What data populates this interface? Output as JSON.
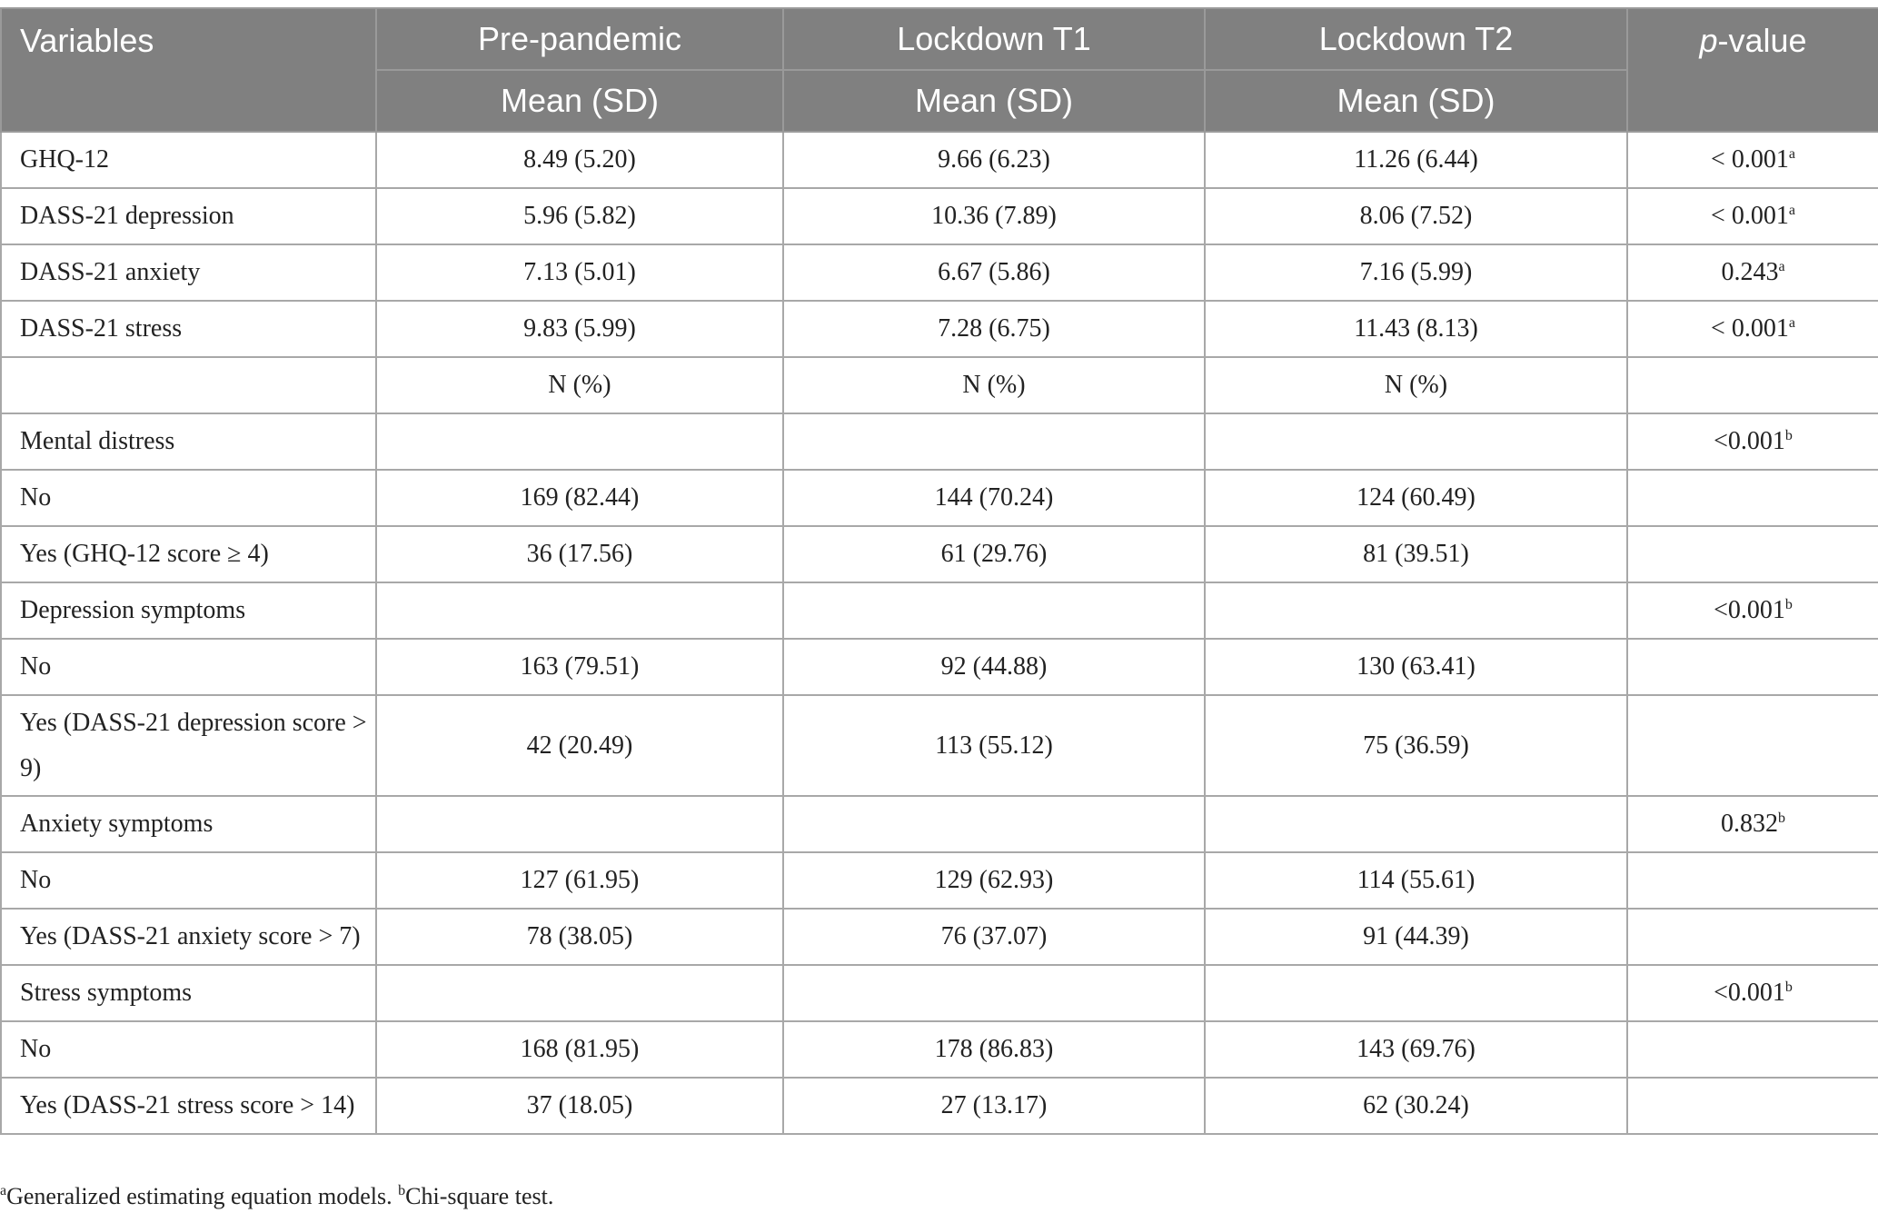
{
  "header": {
    "variables": "Variables",
    "p_value_italic": "p",
    "p_value_rest": "-value",
    "groups": [
      "Pre-pandemic",
      "Lockdown T1",
      "Lockdown T2"
    ],
    "subheader": "Mean (SD)"
  },
  "rows": [
    {
      "label": "GHQ-12",
      "v": [
        "8.49 (5.20)",
        "9.66 (6.23)",
        "11.26 (6.44)"
      ],
      "p": "< 0.001",
      "sup": "a"
    },
    {
      "label": "DASS-21 depression",
      "v": [
        "5.96 (5.82)",
        "10.36 (7.89)",
        "8.06 (7.52)"
      ],
      "p": "< 0.001",
      "sup": "a"
    },
    {
      "label": "DASS-21 anxiety",
      "v": [
        "7.13 (5.01)",
        "6.67 (5.86)",
        "7.16 (5.99)"
      ],
      "p": "0.243",
      "sup": "a"
    },
    {
      "label": "DASS-21 stress",
      "v": [
        "9.83 (5.99)",
        "7.28 (6.75)",
        "11.43 (8.13)"
      ],
      "p": "< 0.001",
      "sup": "a"
    },
    {
      "label": "",
      "v": [
        "N (%)",
        "N (%)",
        "N (%)"
      ],
      "p": "",
      "sup": ""
    },
    {
      "label": "Mental distress",
      "v": [
        "",
        "",
        ""
      ],
      "p": "<0.001",
      "sup": "b"
    },
    {
      "label": "No",
      "v": [
        "169 (82.44)",
        "144 (70.24)",
        "124 (60.49)"
      ],
      "p": "",
      "sup": ""
    },
    {
      "label": "Yes (GHQ-12 score ≥ 4)",
      "v": [
        "36 (17.56)",
        "61 (29.76)",
        "81 (39.51)"
      ],
      "p": "",
      "sup": ""
    },
    {
      "label": "Depression symptoms",
      "v": [
        "",
        "",
        ""
      ],
      "p": "<0.001",
      "sup": "b"
    },
    {
      "label": "No",
      "v": [
        "163 (79.51)",
        "92 (44.88)",
        "130 (63.41)"
      ],
      "p": "",
      "sup": ""
    },
    {
      "label": "Yes (DASS-21 depression score > 9)",
      "v": [
        "42 (20.49)",
        "113 (55.12)",
        "75 (36.59)"
      ],
      "p": "",
      "sup": ""
    },
    {
      "label": "Anxiety symptoms",
      "v": [
        "",
        "",
        ""
      ],
      "p": "0.832",
      "sup": "b"
    },
    {
      "label": "No",
      "v": [
        "127 (61.95)",
        "129 (62.93)",
        "114 (55.61)"
      ],
      "p": "",
      "sup": ""
    },
    {
      "label": "Yes (DASS-21 anxiety score > 7)",
      "v": [
        "78 (38.05)",
        "76 (37.07)",
        "91 (44.39)"
      ],
      "p": "",
      "sup": ""
    },
    {
      "label": "Stress symptoms",
      "v": [
        "",
        "",
        ""
      ],
      "p": "<0.001",
      "sup": "b"
    },
    {
      "label": "No",
      "v": [
        "168 (81.95)",
        "178 (86.83)",
        "143 (69.76)"
      ],
      "p": "",
      "sup": ""
    },
    {
      "label": "Yes (DASS-21 stress score > 14)",
      "v": [
        "37 (18.05)",
        "27 (13.17)",
        "62 (30.24)"
      ],
      "p": "",
      "sup": ""
    }
  ],
  "footnote": {
    "a_mark": "a",
    "a_text": "Generalized estimating equation models.",
    "b_mark": "b",
    "b_text": "Chi-square test."
  },
  "colors": {
    "header_bg": "#808080",
    "header_text": "#ffffff",
    "border": "#a8a8a8"
  }
}
